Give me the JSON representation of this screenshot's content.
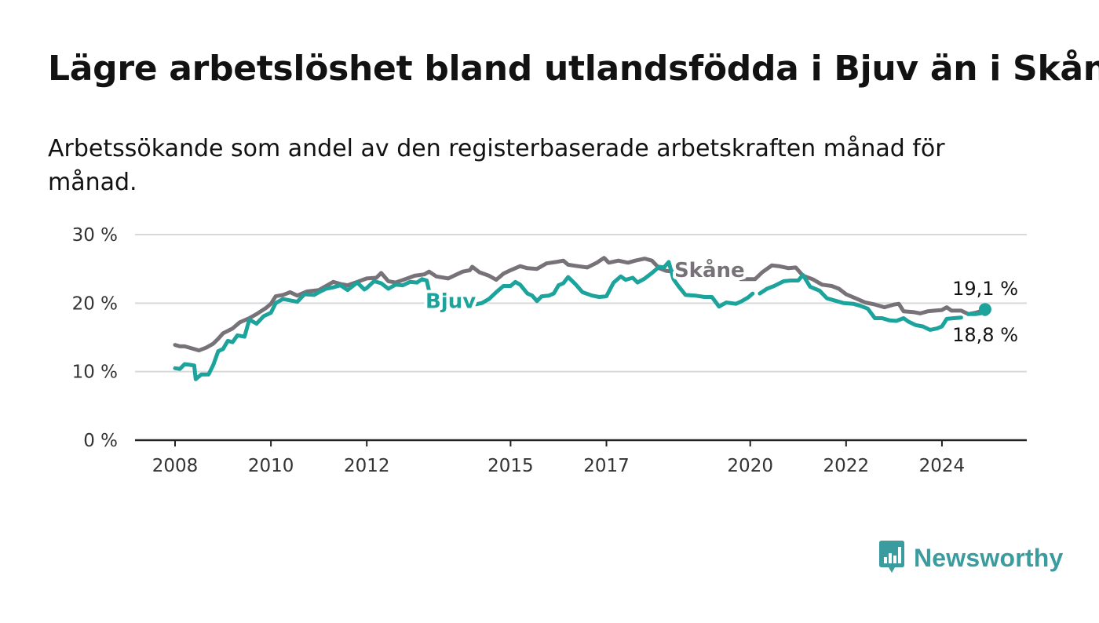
{
  "title": "Lägre arbetslöshet bland utlandsfödda i Bjuv än i Skåne",
  "subtitle": "Arbetssökande som andel av den registerbaserade arbetskraften månad för månad.",
  "brand": {
    "name": "Newsworthy",
    "logo_icon": "bar-chart-speech-bubble-icon",
    "color": "#3a9c9e"
  },
  "chart_data": {
    "type": "line",
    "x_unit": "year",
    "y_unit": "%",
    "ylim": [
      0,
      30
    ],
    "xlim": [
      2008,
      2025
    ],
    "grid": true,
    "y_ticks": [
      {
        "value": 0,
        "label": "0 %"
      },
      {
        "value": 10,
        "label": "10 %"
      },
      {
        "value": 20,
        "label": "20 %"
      },
      {
        "value": 30,
        "label": "30 %"
      }
    ],
    "x_ticks": [
      {
        "value": 2008,
        "label": "2008"
      },
      {
        "value": 2010,
        "label": "2010"
      },
      {
        "value": 2012,
        "label": "2012"
      },
      {
        "value": 2015,
        "label": "2015"
      },
      {
        "value": 2017,
        "label": "2017"
      },
      {
        "value": 2020,
        "label": "2020"
      },
      {
        "value": 2022,
        "label": "2022"
      },
      {
        "value": 2024,
        "label": "2024"
      }
    ],
    "series": [
      {
        "name": "Skåne",
        "color": "#777178",
        "end_value_label": "19,1 %",
        "points": [
          [
            2008.0,
            13.9
          ],
          [
            2008.1,
            13.7
          ],
          [
            2008.2,
            13.7
          ],
          [
            2008.35,
            13.4
          ],
          [
            2008.5,
            13.1
          ],
          [
            2008.65,
            13.5
          ],
          [
            2008.8,
            14.1
          ],
          [
            2008.9,
            14.8
          ],
          [
            2009.0,
            15.6
          ],
          [
            2009.2,
            16.3
          ],
          [
            2009.35,
            17.2
          ],
          [
            2009.55,
            17.8
          ],
          [
            2009.7,
            18.4
          ],
          [
            2009.9,
            19.3
          ],
          [
            2010.0,
            19.9
          ],
          [
            2010.1,
            21.0
          ],
          [
            2010.25,
            21.2
          ],
          [
            2010.4,
            21.6
          ],
          [
            2010.55,
            21.1
          ],
          [
            2010.75,
            21.7
          ],
          [
            2011.0,
            21.9
          ],
          [
            2011.15,
            22.5
          ],
          [
            2011.3,
            23.1
          ],
          [
            2011.45,
            22.8
          ],
          [
            2011.6,
            22.6
          ],
          [
            2011.8,
            23.1
          ],
          [
            2012.0,
            23.6
          ],
          [
            2012.2,
            23.7
          ],
          [
            2012.3,
            24.4
          ],
          [
            2012.45,
            23.2
          ],
          [
            2012.6,
            23.0
          ],
          [
            2012.8,
            23.5
          ],
          [
            2013.0,
            24.0
          ],
          [
            2013.2,
            24.2
          ],
          [
            2013.3,
            24.6
          ],
          [
            2013.45,
            23.9
          ],
          [
            2013.7,
            23.6
          ],
          [
            2013.85,
            24.1
          ],
          [
            2014.0,
            24.6
          ],
          [
            2014.15,
            24.8
          ],
          [
            2014.2,
            25.3
          ],
          [
            2014.35,
            24.5
          ],
          [
            2014.55,
            24.0
          ],
          [
            2014.7,
            23.4
          ],
          [
            2014.85,
            24.3
          ],
          [
            2015.0,
            24.8
          ],
          [
            2015.2,
            25.4
          ],
          [
            2015.35,
            25.1
          ],
          [
            2015.55,
            25.0
          ],
          [
            2015.75,
            25.8
          ],
          [
            2015.95,
            26.0
          ],
          [
            2016.1,
            26.2
          ],
          [
            2016.2,
            25.6
          ],
          [
            2016.4,
            25.4
          ],
          [
            2016.6,
            25.2
          ],
          [
            2016.8,
            25.9
          ],
          [
            2016.95,
            26.6
          ],
          [
            2017.05,
            25.9
          ],
          [
            2017.25,
            26.2
          ],
          [
            2017.45,
            25.9
          ],
          [
            2017.6,
            26.2
          ],
          [
            2017.8,
            26.5
          ],
          [
            2017.95,
            26.2
          ],
          [
            2018.1,
            25.1
          ],
          [
            2018.25,
            24.7
          ],
          [
            2018.45,
            24.6
          ],
          [
            2018.6,
            24.3
          ]
        ],
        "points_after_gap": [
          [
            2019.8,
            23.5
          ],
          [
            2020.1,
            23.5
          ],
          [
            2020.25,
            24.5
          ],
          [
            2020.45,
            25.5
          ],
          [
            2020.6,
            25.4
          ],
          [
            2020.8,
            25.1
          ],
          [
            2020.95,
            25.2
          ],
          [
            2021.1,
            24.0
          ],
          [
            2021.3,
            23.5
          ],
          [
            2021.5,
            22.7
          ],
          [
            2021.7,
            22.5
          ],
          [
            2021.85,
            22.1
          ],
          [
            2022.0,
            21.3
          ],
          [
            2022.2,
            20.7
          ],
          [
            2022.4,
            20.1
          ],
          [
            2022.6,
            19.8
          ],
          [
            2022.8,
            19.4
          ],
          [
            2023.0,
            19.8
          ],
          [
            2023.1,
            19.9
          ],
          [
            2023.2,
            18.8
          ],
          [
            2023.4,
            18.7
          ],
          [
            2023.55,
            18.5
          ],
          [
            2023.7,
            18.8
          ],
          [
            2023.85,
            18.9
          ],
          [
            2024.0,
            19.0
          ],
          [
            2024.1,
            19.4
          ],
          [
            2024.2,
            18.9
          ],
          [
            2024.4,
            18.9
          ],
          [
            2024.55,
            18.4
          ],
          [
            2024.7,
            18.6
          ],
          [
            2024.85,
            18.9
          ],
          [
            2024.9,
            19.1
          ]
        ]
      },
      {
        "name": "Bjuv",
        "color": "#1ba39c",
        "end_value_label": "18,8 %",
        "points": [
          [
            2008.0,
            10.5
          ],
          [
            2008.1,
            10.4
          ],
          [
            2008.2,
            11.1
          ],
          [
            2008.3,
            11.0
          ],
          [
            2008.4,
            10.9
          ],
          [
            2008.43,
            8.9
          ],
          [
            2008.55,
            9.6
          ],
          [
            2008.7,
            9.6
          ],
          [
            2008.8,
            11.0
          ],
          [
            2008.9,
            13.0
          ],
          [
            2009.0,
            13.3
          ],
          [
            2009.1,
            14.5
          ],
          [
            2009.2,
            14.3
          ],
          [
            2009.3,
            15.3
          ],
          [
            2009.45,
            15.1
          ],
          [
            2009.55,
            17.6
          ],
          [
            2009.7,
            17.0
          ],
          [
            2009.85,
            18.1
          ],
          [
            2010.0,
            18.6
          ],
          [
            2010.1,
            20.0
          ],
          [
            2010.25,
            20.6
          ],
          [
            2010.4,
            20.4
          ],
          [
            2010.55,
            20.2
          ],
          [
            2010.7,
            21.3
          ],
          [
            2010.9,
            21.2
          ],
          [
            2011.0,
            21.6
          ],
          [
            2011.15,
            22.1
          ],
          [
            2011.3,
            22.3
          ],
          [
            2011.45,
            22.6
          ],
          [
            2011.6,
            21.9
          ],
          [
            2011.8,
            23.0
          ],
          [
            2011.95,
            22.0
          ],
          [
            2012.0,
            22.2
          ],
          [
            2012.15,
            23.2
          ],
          [
            2012.3,
            22.9
          ],
          [
            2012.45,
            22.1
          ],
          [
            2012.6,
            22.7
          ],
          [
            2012.75,
            22.6
          ],
          [
            2012.9,
            23.1
          ],
          [
            2013.05,
            23.0
          ],
          [
            2013.15,
            23.5
          ],
          [
            2013.25,
            23.3
          ],
          [
            2013.32,
            21.2
          ]
        ],
        "points_after_gap": [
          [
            2014.25,
            19.8
          ],
          [
            2014.4,
            20.0
          ],
          [
            2014.55,
            20.6
          ],
          [
            2014.7,
            21.6
          ],
          [
            2014.85,
            22.5
          ],
          [
            2015.0,
            22.5
          ],
          [
            2015.1,
            23.1
          ],
          [
            2015.2,
            22.7
          ],
          [
            2015.35,
            21.4
          ],
          [
            2015.45,
            21.1
          ],
          [
            2015.55,
            20.3
          ],
          [
            2015.65,
            21.0
          ],
          [
            2015.8,
            21.1
          ],
          [
            2015.9,
            21.4
          ],
          [
            2016.0,
            22.6
          ],
          [
            2016.1,
            22.9
          ],
          [
            2016.2,
            23.8
          ],
          [
            2016.35,
            22.8
          ],
          [
            2016.5,
            21.6
          ],
          [
            2016.7,
            21.1
          ],
          [
            2016.85,
            20.9
          ],
          [
            2017.0,
            21.0
          ],
          [
            2017.15,
            23.0
          ],
          [
            2017.3,
            23.9
          ],
          [
            2017.4,
            23.4
          ],
          [
            2017.55,
            23.7
          ],
          [
            2017.65,
            23.0
          ],
          [
            2017.8,
            23.6
          ],
          [
            2017.95,
            24.4
          ],
          [
            2018.1,
            25.3
          ],
          [
            2018.2,
            25.2
          ],
          [
            2018.3,
            26.0
          ],
          [
            2018.4,
            23.5
          ],
          [
            2018.5,
            22.5
          ],
          [
            2018.65,
            21.2
          ],
          [
            2018.85,
            21.1
          ],
          [
            2019.05,
            20.9
          ],
          [
            2019.2,
            20.9
          ],
          [
            2019.35,
            19.5
          ],
          [
            2019.5,
            20.1
          ],
          [
            2019.7,
            19.9
          ],
          [
            2019.8,
            20.2
          ],
          [
            2019.95,
            20.8
          ],
          [
            2020.05,
            21.4
          ]
        ],
        "points_segment_3": [
          [
            2020.2,
            21.4
          ],
          [
            2020.35,
            22.1
          ],
          [
            2020.5,
            22.5
          ],
          [
            2020.7,
            23.2
          ],
          [
            2020.85,
            23.3
          ],
          [
            2021.0,
            23.3
          ],
          [
            2021.1,
            24.1
          ],
          [
            2021.25,
            22.4
          ],
          [
            2021.45,
            21.8
          ],
          [
            2021.6,
            20.7
          ],
          [
            2021.8,
            20.3
          ],
          [
            2021.95,
            20.0
          ],
          [
            2022.15,
            19.9
          ],
          [
            2022.3,
            19.6
          ],
          [
            2022.45,
            19.2
          ],
          [
            2022.6,
            17.8
          ],
          [
            2022.75,
            17.8
          ],
          [
            2022.9,
            17.5
          ],
          [
            2023.05,
            17.4
          ],
          [
            2023.2,
            17.8
          ],
          [
            2023.3,
            17.3
          ],
          [
            2023.45,
            16.8
          ],
          [
            2023.6,
            16.6
          ],
          [
            2023.75,
            16.1
          ],
          [
            2023.9,
            16.3
          ],
          [
            2024.0,
            16.6
          ],
          [
            2024.1,
            17.7
          ],
          [
            2024.25,
            17.8
          ],
          [
            2024.4,
            17.9
          ]
        ],
        "points_segment_4": [
          [
            2024.55,
            18.4
          ],
          [
            2024.7,
            18.4
          ],
          [
            2024.8,
            18.5
          ],
          [
            2024.9,
            18.8
          ]
        ]
      }
    ],
    "labels": [
      {
        "text": "Skåne",
        "series": "Skåne",
        "x": 2019.15,
        "y": 23.8
      },
      {
        "text": "Bjuv",
        "series": "Bjuv",
        "x": 2013.75,
        "y": 19.3
      }
    ]
  }
}
